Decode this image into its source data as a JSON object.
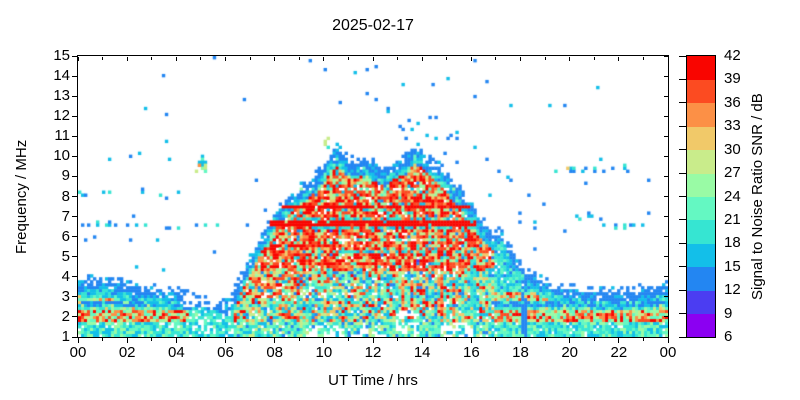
{
  "chart_data": {
    "type": "heatmap",
    "title": "2025-02-17",
    "xlabel": "UT Time / hrs",
    "ylabel": "Frequency / MHz",
    "x_range": [
      0,
      24
    ],
    "y_range": [
      1,
      15
    ],
    "grid": false,
    "x_ticks": [
      {
        "v": 0,
        "label": "00"
      },
      {
        "v": 2,
        "label": "02"
      },
      {
        "v": 4,
        "label": "04"
      },
      {
        "v": 6,
        "label": "06"
      },
      {
        "v": 8,
        "label": "08"
      },
      {
        "v": 10,
        "label": "10"
      },
      {
        "v": 12,
        "label": "12"
      },
      {
        "v": 14,
        "label": "14"
      },
      {
        "v": 16,
        "label": "16"
      },
      {
        "v": 18,
        "label": "18"
      },
      {
        "v": 20,
        "label": "20"
      },
      {
        "v": 22,
        "label": "22"
      },
      {
        "v": 24,
        "label": "00"
      }
    ],
    "x_minor_ticks": [
      1,
      3,
      5,
      7,
      9,
      11,
      13,
      15,
      17,
      19,
      21,
      23
    ],
    "y_ticks": [
      1,
      2,
      3,
      4,
      5,
      6,
      7,
      8,
      9,
      10,
      11,
      12,
      13,
      14,
      15
    ],
    "colorbar": {
      "label": "Signal to Noise Ratio SNR / dB",
      "min": 6,
      "max": 42,
      "step": 3,
      "ticks": [
        6,
        9,
        12,
        15,
        18,
        21,
        24,
        27,
        30,
        33,
        36,
        39,
        42
      ],
      "colors": [
        "#8b00f2",
        "#4b3df2",
        "#2386f2",
        "#13bfe9",
        "#36e5d2",
        "#64f8c2",
        "#99fba5",
        "#c9ec8b",
        "#f1c969",
        "#fc9046",
        "#fc4b21",
        "#f90500"
      ]
    },
    "heatmap_model": {
      "seed": 1337,
      "grid": {
        "cols": 197,
        "rows": 94
      },
      "envelope_hour_mhz": [
        [
          0,
          3.85
        ],
        [
          0.5,
          3.8
        ],
        [
          1,
          3.75
        ],
        [
          1.5,
          3.7
        ],
        [
          2,
          3.6
        ],
        [
          2.5,
          3.5
        ],
        [
          3,
          3.4
        ],
        [
          3.5,
          3.3
        ],
        [
          4,
          3.2
        ],
        [
          4.5,
          3.05
        ],
        [
          5,
          2.9
        ],
        [
          5.5,
          2.75
        ],
        [
          5.9,
          2.6
        ],
        [
          6.2,
          2.8
        ],
        [
          6.5,
          3.6
        ],
        [
          6.8,
          4.4
        ],
        [
          7.1,
          5.1
        ],
        [
          7.5,
          6.1
        ],
        [
          8,
          7.1
        ],
        [
          8.5,
          7.8
        ],
        [
          9,
          8.4
        ],
        [
          9.5,
          8.8
        ],
        [
          10,
          9.5
        ],
        [
          10.3,
          10.1
        ],
        [
          10.6,
          10.35
        ],
        [
          10.9,
          9.9
        ],
        [
          11.3,
          9.6
        ],
        [
          11.6,
          9.9
        ],
        [
          11.9,
          9.7
        ],
        [
          12.2,
          9.4
        ],
        [
          12.5,
          9.3
        ],
        [
          12.8,
          9.6
        ],
        [
          13.1,
          9.8
        ],
        [
          13.4,
          10.0
        ],
        [
          13.7,
          10.45
        ],
        [
          14,
          10.2
        ],
        [
          14.3,
          9.8
        ],
        [
          14.7,
          9.4
        ],
        [
          15,
          9.0
        ],
        [
          15.4,
          8.5
        ],
        [
          15.8,
          7.8
        ],
        [
          16.2,
          7.1
        ],
        [
          16.6,
          6.4
        ],
        [
          17,
          6.0
        ],
        [
          17.3,
          6.15
        ],
        [
          17.6,
          5.3
        ],
        [
          18,
          4.6
        ],
        [
          18.4,
          4.1
        ],
        [
          18.8,
          3.8
        ],
        [
          19.2,
          3.6
        ],
        [
          19.6,
          3.45
        ],
        [
          20,
          3.35
        ],
        [
          20.5,
          3.25
        ],
        [
          21,
          3.2
        ],
        [
          21.5,
          3.2
        ],
        [
          22,
          3.2
        ],
        [
          22.5,
          3.25
        ],
        [
          23,
          3.35
        ],
        [
          23.5,
          3.45
        ],
        [
          24,
          3.55
        ]
      ],
      "day_core": {
        "t": [
          6.8,
          16.9
        ],
        "f_min": 4.25,
        "p_red": 0.56,
        "red_snr": [
          36,
          42
        ],
        "mid_snr": [
          27,
          36
        ],
        "low_snr": [
          14,
          27
        ]
      },
      "day_lower": {
        "t": [
          6.5,
          16.9
        ],
        "f": [
          1.0,
          4.25
        ]
      },
      "dawn_boost": {
        "t": [
          6.4,
          9.2
        ],
        "f": [
          3.0,
          4.25
        ]
      },
      "night_bands": [
        {
          "f": [
            1.0,
            1.7
          ],
          "snr": [
            15,
            26
          ],
          "p_null": 0.08
        },
        {
          "f": [
            1.75,
            2.35
          ],
          "snr": [
            21,
            30
          ],
          "p_hot": 0.45,
          "hot_snr": [
            33,
            42
          ]
        },
        {
          "f": [
            2.35,
            2.8
          ],
          "snr": [
            17,
            26
          ],
          "p_hot": 0.18,
          "hot_snr": [
            27,
            34
          ]
        },
        {
          "f": [
            2.8,
            3.2
          ],
          "snr": [
            18,
            27
          ],
          "p_hot": 0.3,
          "hot_snr": [
            29,
            37
          ]
        },
        {
          "f": [
            3.2,
            15.0
          ],
          "snr": [
            14,
            24
          ],
          "p_null": 0.1
        }
      ],
      "evening_boost": {
        "t": [
          17.4,
          22.2
        ],
        "f": [
          2.78,
          3.22
        ],
        "p": 0.4,
        "snr": [
          34,
          42
        ]
      },
      "blue_line": {
        "f": [
          2.52,
          2.72
        ],
        "p": 0.7,
        "snr": [
          12,
          16
        ]
      },
      "dawn_fade": {
        "t": [
          4.55,
          6.3
        ],
        "p_null": 0.26,
        "snr_cap": 26
      },
      "stripes": [
        {
          "f": [
            6.5,
            6.74
          ],
          "t": [
            6.9,
            16.2
          ],
          "mode": "hot"
        },
        {
          "f": [
            7.36,
            7.56
          ],
          "t": [
            7.3,
            15.9
          ],
          "mode": "hot"
        },
        {
          "f": [
            6.36,
            6.5
          ],
          "t": [
            9.6,
            16.4
          ],
          "mode": "cool"
        },
        {
          "f": [
            6.78,
            6.92
          ],
          "t": [
            7.0,
            16.4
          ],
          "mode": "cool"
        },
        {
          "f": [
            8.24,
            8.52
          ],
          "t": [
            8.0,
            15.6
          ],
          "mode": "light"
        },
        {
          "f": [
            5.2,
            5.32
          ],
          "t": [
            10.4,
            16.2
          ],
          "mode": "cool"
        },
        {
          "f": [
            5.78,
            5.9
          ],
          "t": [
            10.0,
            15.8
          ],
          "mode": "light"
        },
        {
          "f": [
            2.92,
            3.18
          ],
          "t": [
            7.6,
            12.2
          ],
          "mode": "gap"
        }
      ],
      "absorption": [
        {
          "t": [
            9.3,
            10.9
          ],
          "f": [
            1.0,
            1.65
          ],
          "p": 0.5
        },
        {
          "t": [
            11.0,
            12.7
          ],
          "f": [
            1.0,
            1.5
          ],
          "p": 0.38
        },
        {
          "t": [
            12.9,
            13.9
          ],
          "f": [
            1.2,
            2.4
          ],
          "p": 0.55
        },
        {
          "t": [
            14.7,
            16.1
          ],
          "f": [
            1.0,
            1.75
          ],
          "p": 0.55
        },
        {
          "t": [
            4.1,
            5.2
          ],
          "f": [
            2.5,
            3.15
          ],
          "p": 0.6
        }
      ],
      "vertical_lines": [
        {
          "t": 16.05,
          "halfwidth": 0.1,
          "f_max": 4.9,
          "p": 0.7,
          "snr": [
            16,
            21
          ]
        },
        {
          "t": 18.18,
          "halfwidth": 0.1,
          "f_max": 4.5,
          "p": 0.7,
          "snr": [
            12,
            15
          ]
        }
      ],
      "cool_patch": {
        "t": [
          22.4,
          23.8
        ],
        "f": [
          2.55,
          3.0
        ],
        "p": 0.5,
        "snr": [
          13,
          17
        ]
      },
      "speckle_rows": [
        {
          "f": 9.9,
          "t": [
            0.2,
            4.7
          ],
          "p": 0.2,
          "snr": [
            12,
            18
          ]
        },
        {
          "f": 8.15,
          "t": [
            0.0,
            4.6
          ],
          "p": 0.22,
          "snr": [
            12,
            20
          ]
        },
        {
          "f": 6.6,
          "t": [
            0.0,
            5.7
          ],
          "p": 0.3,
          "snr": [
            12,
            20
          ]
        },
        {
          "f": 9.35,
          "t": [
            19.2,
            22.6
          ],
          "p": 0.16,
          "snr": [
            12,
            20
          ]
        },
        {
          "f": 6.6,
          "t": [
            21.3,
            24.0
          ],
          "p": 0.18,
          "snr": [
            12,
            21
          ]
        },
        {
          "f": 7.0,
          "t": [
            20.3,
            21.2
          ],
          "p": 0.5,
          "snr": [
            13,
            20
          ]
        }
      ],
      "clusters": [
        {
          "t": [
            4.8,
            5.15
          ],
          "f": [
            9.3,
            10.05
          ],
          "p": 0.5,
          "snr": [
            14,
            30
          ]
        },
        {
          "t": [
            10.05,
            10.35
          ],
          "f": [
            10.45,
            10.95
          ],
          "p": 0.45,
          "snr": [
            15,
            33
          ]
        }
      ],
      "outlier_dots": [
        [
          5.6,
          14.9,
          13
        ],
        [
          9.4,
          14.75,
          13
        ],
        [
          10.1,
          14.4,
          13
        ],
        [
          11.7,
          13.2,
          14
        ],
        [
          12.1,
          12.9,
          13
        ],
        [
          12.6,
          12.2,
          17
        ],
        [
          13.1,
          11.5,
          13
        ],
        [
          14.4,
          13.6,
          13
        ],
        [
          14.5,
          11.9,
          13
        ],
        [
          15.2,
          11.0,
          14
        ],
        [
          16.1,
          10.4,
          15
        ],
        [
          16.2,
          13.0,
          13
        ],
        [
          16.2,
          14.8,
          13
        ],
        [
          16.6,
          9.9,
          13
        ],
        [
          17.1,
          9.3,
          13
        ],
        [
          17.6,
          12.5,
          15
        ],
        [
          17.6,
          8.8,
          14
        ],
        [
          18.3,
          8.1,
          13
        ],
        [
          19.0,
          7.7,
          13
        ],
        [
          19.9,
          9.35,
          31
        ],
        [
          20.6,
          8.6,
          13
        ],
        [
          21.2,
          9.9,
          16
        ],
        [
          22.4,
          9.3,
          14
        ],
        [
          23.0,
          6.6,
          17
        ],
        [
          2.1,
          5.9,
          13
        ],
        [
          0.3,
          5.8,
          13
        ],
        [
          6.9,
          6.6,
          14
        ],
        [
          7.2,
          8.8,
          13
        ],
        [
          7.6,
          7.4,
          13
        ],
        [
          4.95,
          9.55,
          34
        ]
      ],
      "speckle_above": {
        "p_near": 0.035,
        "near_range": 2.8,
        "t": [
          13.2,
          19.0
        ],
        "p_far": 0.0035,
        "snr": [
          12,
          17
        ]
      }
    }
  }
}
